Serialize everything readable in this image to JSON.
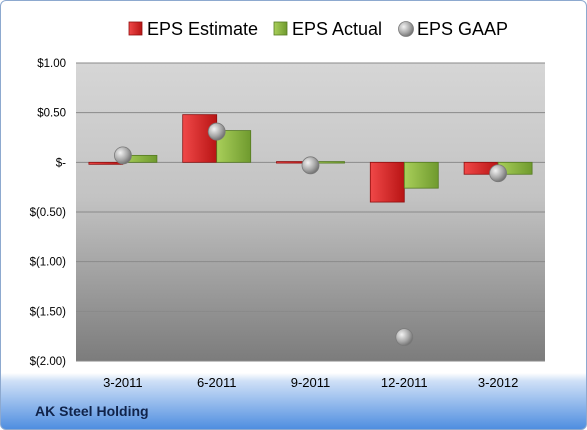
{
  "company": "AK Steel Holding",
  "chart_data": {
    "type": "bar",
    "categories": [
      "3-2011",
      "6-2011",
      "9-2011",
      "12-2011",
      "3-2012"
    ],
    "series": [
      {
        "name": "EPS Estimate",
        "kind": "bar",
        "color": "#e02b2b",
        "values": [
          -0.02,
          0.48,
          0.0,
          -0.4,
          -0.12
        ]
      },
      {
        "name": "EPS Actual",
        "kind": "bar",
        "color": "#9bc34a",
        "values": [
          0.07,
          0.32,
          0.0,
          -0.26,
          -0.12
        ]
      },
      {
        "name": "EPS GAAP",
        "kind": "marker",
        "color": "#b8b8b8",
        "values": [
          0.07,
          0.31,
          -0.03,
          -1.76,
          -0.11
        ]
      }
    ],
    "y_ticks": [
      {
        "value": 1.0,
        "label": "$1.00"
      },
      {
        "value": 0.5,
        "label": "$0.50"
      },
      {
        "value": 0.0,
        "label": "$-"
      },
      {
        "value": -0.5,
        "label": "$(0.50)"
      },
      {
        "value": -1.0,
        "label": "$(1.00)"
      },
      {
        "value": -1.5,
        "label": "$(1.50)"
      },
      {
        "value": -2.0,
        "label": "$(2.00)"
      }
    ],
    "ylim": [
      -2.0,
      1.0
    ],
    "grid": true,
    "legend_position": "top",
    "title": "",
    "xlabel": "",
    "ylabel": ""
  }
}
